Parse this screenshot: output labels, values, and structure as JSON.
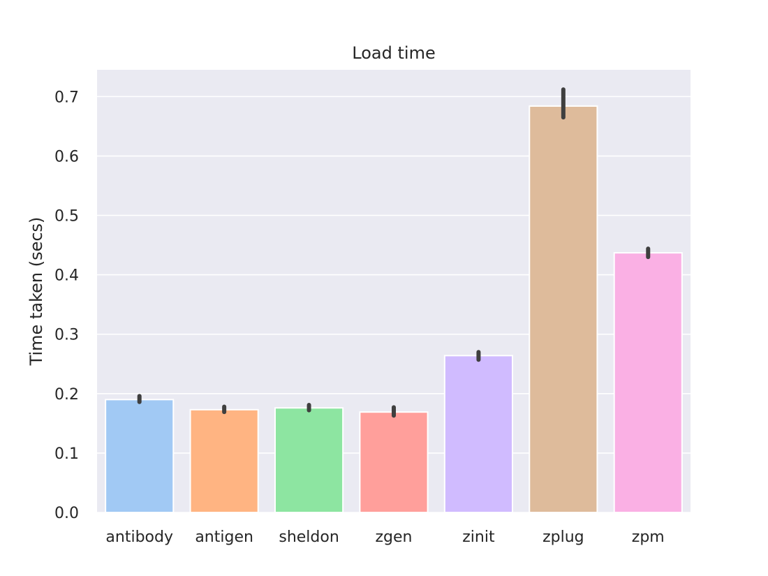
{
  "chart_data": {
    "type": "bar",
    "title": "Load time",
    "xlabel": "",
    "ylabel": "Time taken (secs)",
    "ylim": [
      0,
      0.745
    ],
    "yticks": [
      "0.0",
      "0.1",
      "0.2",
      "0.3",
      "0.4",
      "0.5",
      "0.6",
      "0.7"
    ],
    "grid": true,
    "categories": [
      "antibody",
      "antigen",
      "sheldon",
      "zgen",
      "zinit",
      "zplug",
      "zpm"
    ],
    "values": [
      0.19,
      0.173,
      0.176,
      0.169,
      0.264,
      0.684,
      0.437
    ],
    "error_bars": [
      [
        0.186,
        0.196
      ],
      [
        0.169,
        0.178
      ],
      [
        0.172,
        0.181
      ],
      [
        0.163,
        0.177
      ],
      [
        0.257,
        0.27
      ],
      [
        0.665,
        0.712
      ],
      [
        0.43,
        0.444
      ]
    ],
    "colors": [
      "#a1c9f4",
      "#ffb482",
      "#8de5a1",
      "#ff9f9b",
      "#d0bbff",
      "#debb9b",
      "#fab0e4"
    ],
    "plot_background": "#eaeaf2",
    "grid_color": "#ffffff",
    "error_bar_color": "#3f3f3f"
  }
}
